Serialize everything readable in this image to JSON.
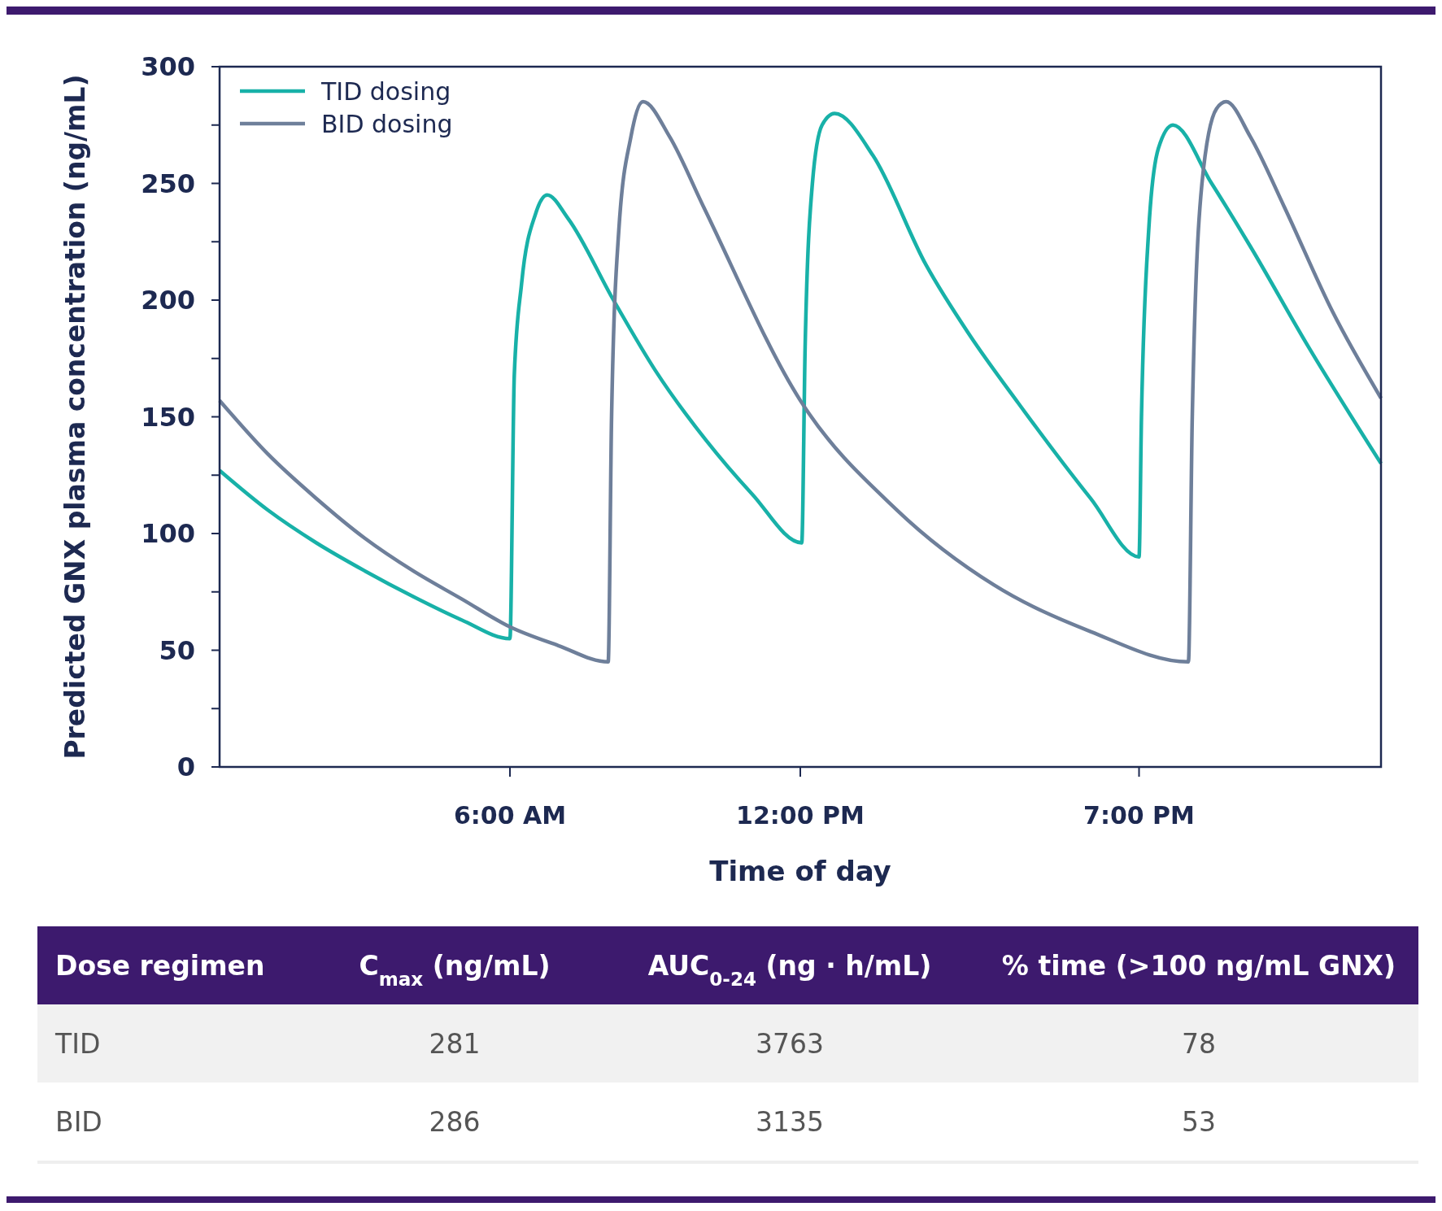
{
  "chart_data": [
    {
      "type": "line",
      "xlabel": "Time of day",
      "ylabel": "Predicted GNX plasma concentration (ng/mL)",
      "xlim": [
        0,
        24
      ],
      "xticks": [
        {
          "value": 6,
          "label": "6:00 AM"
        },
        {
          "value": 12,
          "label": "12:00 PM"
        },
        {
          "value": 19,
          "label": "7:00 PM"
        }
      ],
      "ylim": [
        0,
        300
      ],
      "yticks": [
        0,
        {
          "value": 25,
          "label": null
        },
        50,
        {
          "value": 75,
          "label": null
        },
        100,
        {
          "value": 125,
          "label": null
        },
        150,
        {
          "value": 175,
          "label": null
        },
        200,
        {
          "value": 225,
          "label": null
        },
        250,
        {
          "value": 275,
          "label": null
        },
        300
      ],
      "legend": "top left",
      "grid": false,
      "line_style": "solid",
      "marker": "none",
      "series": [
        {
          "name": "TID dosing",
          "color": "#18b1a8",
          "x": [
            0,
            1,
            2,
            3,
            4,
            5,
            6,
            6.09,
            6.24,
            6.53,
            6.77,
            7.2,
            8.14,
            9,
            10.05,
            11,
            12.03,
            12.1,
            12.25,
            12.45,
            12.71,
            13.5,
            14.6,
            15.5,
            16.5,
            18,
            19,
            19.05,
            19.2,
            19.4,
            19.7,
            20.5,
            21.3,
            22.5,
            24
          ],
          "values": [
            127,
            110,
            96,
            84,
            73,
            63,
            55,
            168,
            207,
            237,
            245,
            235,
            200,
            170,
            140,
            117,
            96,
            180,
            250,
            275,
            280,
            262,
            215,
            185,
            156,
            115,
            90,
            150,
            230,
            265,
            275,
            250,
            223,
            180,
            130
          ]
        },
        {
          "name": "BID dosing",
          "color": "#6e7f9a",
          "x": [
            0,
            1,
            2,
            3,
            4,
            5,
            6,
            7,
            8.03,
            8.1,
            8.25,
            8.5,
            8.75,
            9.3,
            10,
            12,
            14,
            16,
            18,
            20.02,
            20.1,
            20.3,
            20.6,
            20.8,
            21.3,
            22,
            23,
            24
          ],
          "values": [
            157,
            134,
            115,
            98,
            84,
            72,
            60,
            52,
            45,
            150,
            230,
            270,
            285,
            270,
            240,
            157,
            110,
            78,
            58,
            45,
            150,
            250,
            282,
            285,
            270,
            240,
            195,
            158
          ]
        }
      ]
    },
    {
      "type": "other",
      "categories": [
        "Dose regimen",
        "C$_{max}$ (ng/mL)",
        "AUC$_{0-24}$ (ng · h/mL)",
        "% time (>100 ng/mL GNX)"
      ],
      "y_categories": [
        "TID",
        "BID"
      ],
      "cells": [
        [
          "281",
          "3763",
          "78"
        ],
        [
          "286",
          "3135",
          "53"
        ]
      ]
    }
  ]
}
